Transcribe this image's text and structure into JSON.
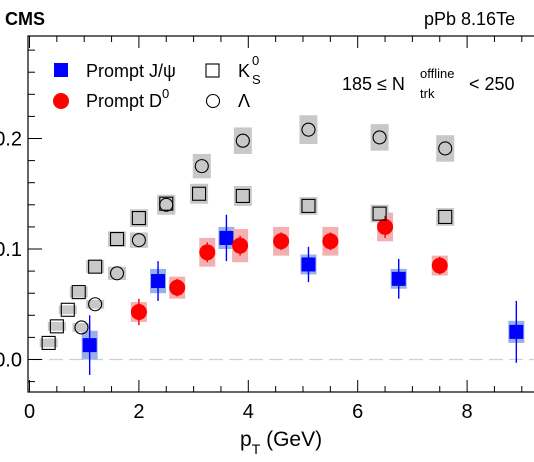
{
  "header": {
    "experiment": "CMS",
    "system_prefix": "pPb 8.16",
    "system_suffix": "Te"
  },
  "chart_data": {
    "type": "scatter",
    "xlabel_main": "p",
    "xlabel_sub": "T",
    "xlabel_unit": " (GeV)",
    "ylabel": "",
    "xlim": [
      0,
      9.3
    ],
    "ylim": [
      -0.03,
      0.285
    ],
    "x_ticks": [
      0,
      2,
      4,
      6,
      8
    ],
    "y_ticks": [
      0.0,
      0.1,
      0.2
    ],
    "y_tick_labels": [
      "0.0",
      "0.1",
      "0.2"
    ],
    "x_tick_labels": [
      "0",
      "2",
      "4",
      "6",
      "8"
    ],
    "grid": false,
    "zero_line": true,
    "legend_position": "top-left",
    "annotation": {
      "prefix": "185 ≤ N",
      "sup": "offline",
      "sub": "trk",
      "suffix": " < 250"
    },
    "series": [
      {
        "name": "Prompt J/ψ",
        "legend_text": "Prompt J/ψ",
        "marker": "filled-square",
        "color": "#0000ff",
        "box_color": "#9ab0e8",
        "points": [
          {
            "x": 1.1,
            "y": 0.013,
            "err": 0.027,
            "sys": 0.013
          },
          {
            "x": 2.35,
            "y": 0.071,
            "err": 0.018,
            "sys": 0.011
          },
          {
            "x": 3.6,
            "y": 0.11,
            "err": 0.021,
            "sys": 0.01
          },
          {
            "x": 5.1,
            "y": 0.086,
            "err": 0.016,
            "sys": 0.009
          },
          {
            "x": 6.75,
            "y": 0.073,
            "err": 0.018,
            "sys": 0.009
          },
          {
            "x": 8.9,
            "y": 0.025,
            "err": 0.028,
            "sys": 0.01
          }
        ]
      },
      {
        "name": "Prompt D0",
        "legend_text": "Prompt D",
        "legend_sup": "0",
        "marker": "filled-circle",
        "color": "#ff0000",
        "box_color": "#f4b0b0",
        "points": [
          {
            "x": 2.0,
            "y": 0.043,
            "err": 0.012,
            "sys": 0.009
          },
          {
            "x": 2.7,
            "y": 0.065,
            "err": 0.008,
            "sys": 0.01
          },
          {
            "x": 3.25,
            "y": 0.097,
            "err": 0.009,
            "sys": 0.013
          },
          {
            "x": 3.85,
            "y": 0.103,
            "err": 0.009,
            "sys": 0.015
          },
          {
            "x": 4.6,
            "y": 0.107,
            "err": 0.008,
            "sys": 0.013
          },
          {
            "x": 5.5,
            "y": 0.107,
            "err": 0.008,
            "sys": 0.013
          },
          {
            "x": 6.5,
            "y": 0.12,
            "err": 0.01,
            "sys": 0.013
          },
          {
            "x": 7.5,
            "y": 0.085,
            "err": 0.008,
            "sys": 0.009
          }
        ]
      },
      {
        "name": "K0S",
        "legend_text": "K",
        "legend_sup": "0",
        "legend_sub": "S",
        "marker": "open-square",
        "color": "#000000",
        "box_color": "#c8c8c8",
        "points": [
          {
            "x": 0.35,
            "y": 0.015,
            "sys": 0.004
          },
          {
            "x": 0.5,
            "y": 0.03,
            "sys": 0.004
          },
          {
            "x": 0.7,
            "y": 0.045,
            "sys": 0.004
          },
          {
            "x": 0.9,
            "y": 0.061,
            "sys": 0.005
          },
          {
            "x": 1.2,
            "y": 0.084,
            "sys": 0.006
          },
          {
            "x": 1.6,
            "y": 0.109,
            "sys": 0.007
          },
          {
            "x": 2.0,
            "y": 0.128,
            "sys": 0.008
          },
          {
            "x": 2.5,
            "y": 0.141,
            "sys": 0.008
          },
          {
            "x": 3.1,
            "y": 0.15,
            "sys": 0.009
          },
          {
            "x": 3.9,
            "y": 0.148,
            "sys": 0.009
          },
          {
            "x": 5.1,
            "y": 0.139,
            "sys": 0.008
          },
          {
            "x": 6.4,
            "y": 0.132,
            "sys": 0.008
          },
          {
            "x": 7.6,
            "y": 0.129,
            "sys": 0.008
          }
        ]
      },
      {
        "name": "Lambda",
        "legend_text": "Λ",
        "marker": "open-circle",
        "color": "#000000",
        "box_color": "#c8c8c8",
        "points": [
          {
            "x": 0.95,
            "y": 0.029,
            "sys": 0.004
          },
          {
            "x": 1.2,
            "y": 0.05,
            "sys": 0.004
          },
          {
            "x": 1.6,
            "y": 0.078,
            "sys": 0.006
          },
          {
            "x": 2.0,
            "y": 0.108,
            "sys": 0.007
          },
          {
            "x": 2.5,
            "y": 0.14,
            "sys": 0.009
          },
          {
            "x": 3.15,
            "y": 0.175,
            "sys": 0.011
          },
          {
            "x": 3.9,
            "y": 0.198,
            "sys": 0.012
          },
          {
            "x": 5.1,
            "y": 0.208,
            "sys": 0.013
          },
          {
            "x": 6.4,
            "y": 0.201,
            "sys": 0.012
          },
          {
            "x": 7.6,
            "y": 0.191,
            "sys": 0.012
          }
        ]
      }
    ]
  }
}
